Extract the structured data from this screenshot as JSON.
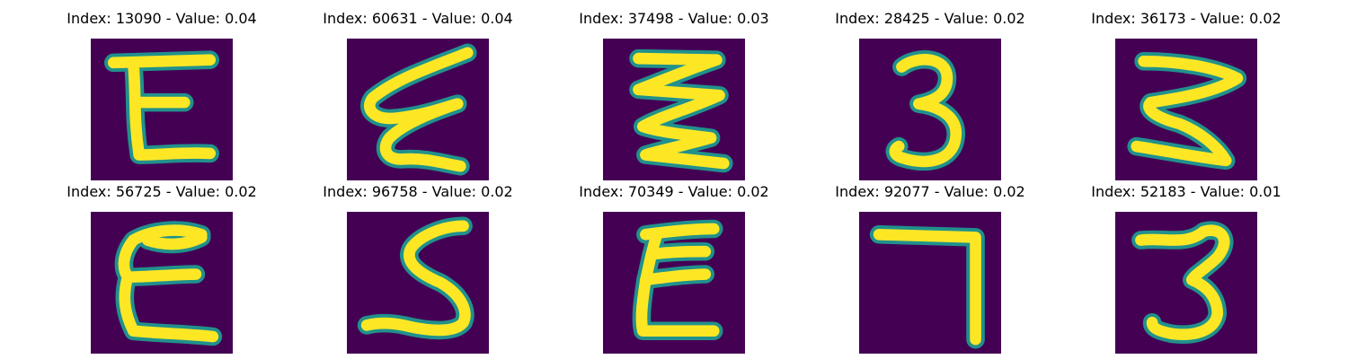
{
  "figure": {
    "panels": [
      {
        "title": "Index: 13090 - Value: 0.04",
        "glyph": "E"
      },
      {
        "title": "Index: 60631 - Value: 0.04",
        "glyph": "Z"
      },
      {
        "title": "Index: 37498 - Value: 0.03",
        "glyph": "zigzag-3"
      },
      {
        "title": "Index: 28425 - Value: 0.02",
        "glyph": "3"
      },
      {
        "title": "Index: 36173 - Value: 0.02",
        "glyph": "3"
      },
      {
        "title": "Index: 56725 - Value: 0.02",
        "glyph": "E"
      },
      {
        "title": "Index: 96758 - Value: 0.02",
        "glyph": "S"
      },
      {
        "title": "Index: 70349 - Value: 0.02",
        "glyph": "E"
      },
      {
        "title": "Index: 92077 - Value: 0.02",
        "glyph": "7"
      },
      {
        "title": "Index: 52183 - Value: 0.01",
        "glyph": "3"
      }
    ],
    "colors": {
      "background": "#440154",
      "edge": "#21918c",
      "stroke": "#fde725"
    }
  }
}
